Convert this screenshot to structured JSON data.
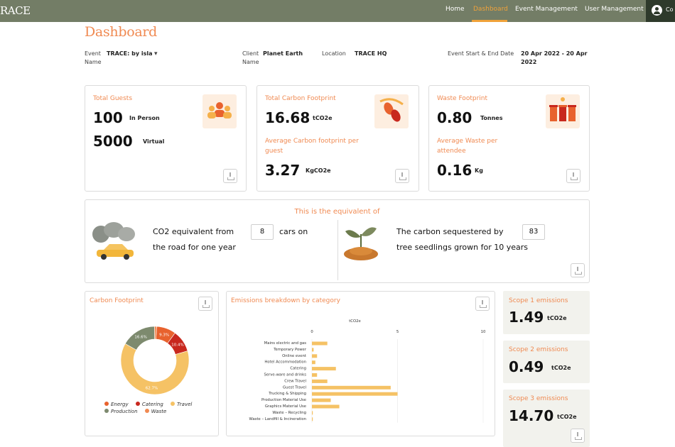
{
  "nav": {
    "logo": "RACE",
    "home": "Home",
    "dashboard": "Dashboard",
    "event_mgmt": "Event Management",
    "user_mgmt": "User Management",
    "user_label": "Co"
  },
  "page": {
    "title": "Dashboard"
  },
  "event_info": {
    "event_label": "Event Name",
    "event_value": "TRACE: by isla",
    "client_label": "Client Name",
    "client_value": "Planet Earth",
    "location_label": "Location",
    "location_value": "TRACE HQ",
    "dates_label": "Event Start & End Date",
    "dates_value": "20 Apr 2022 - 20 Apr 2022"
  },
  "guests": {
    "label": "Total Guests",
    "in_person": "100",
    "in_person_label": "In Person",
    "virtual": "5000",
    "virtual_label": "Virtual"
  },
  "carbon": {
    "label": "Total Carbon Footprint",
    "value": "16.68",
    "unit": "tCO2e",
    "avg_label": "Average Carbon footprint per guest",
    "avg_value": "3.27",
    "avg_unit": "KgCO2e"
  },
  "waste": {
    "label": "Waste Footprint",
    "value": "0.80",
    "unit": "Tonnes",
    "avg_label": "Average Waste per attendee",
    "avg_value": "0.16",
    "avg_unit": "Kg"
  },
  "equivalent": {
    "heading": "This is the equivalent of",
    "cars_text1": "CO2 equivalent from",
    "cars_value": "8",
    "cars_text2": "cars on",
    "cars_text3": "the road for one year",
    "trees_text1": "The carbon sequestered by",
    "trees_value": "83",
    "trees_text2": "tree seedlings grown for 10 years"
  },
  "footprint_chart": {
    "title": "Carbon Footprint",
    "legend": [
      {
        "name": "Energy",
        "color": "#e8622e"
      },
      {
        "name": "Catering",
        "color": "#c8281e"
      },
      {
        "name": "Travel",
        "color": "#f5c265"
      },
      {
        "name": "Production",
        "color": "#7d8a6e"
      },
      {
        "name": "Waste",
        "color": "#f08a52"
      }
    ]
  },
  "emissions_chart": {
    "title": "Emissions breakdown by category"
  },
  "scopes": [
    {
      "label": "Scope 1 emissions",
      "value": "1.49",
      "unit": "tCO2e"
    },
    {
      "label": "Scope 2 emissions",
      "value": "0.49",
      "unit": "tCO2e"
    },
    {
      "label": "Scope 3 emissions",
      "value": "14.70",
      "unit": "tCO2e"
    }
  ],
  "chart_data": [
    {
      "type": "pie",
      "title": "Carbon Footprint",
      "labels": [
        "Energy",
        "Catering",
        "Travel",
        "Production",
        "Waste"
      ],
      "values": [
        9.3,
        10.4,
        62.7,
        16.6,
        1.0
      ],
      "value_labels": [
        "9.3%",
        "10.4%",
        "62.7%",
        "16.6%",
        ""
      ],
      "colors": [
        "#e8622e",
        "#c8281e",
        "#f5c265",
        "#7d8a6e",
        "#f08a52"
      ]
    },
    {
      "type": "bar",
      "orientation": "horizontal",
      "title": "Emissions breakdown by category",
      "xlabel": "tCO2e",
      "xlim": [
        0,
        10
      ],
      "xticks": [
        0,
        5,
        10
      ],
      "categories": [
        "Mains electric and gas",
        "Temporary Power",
        "Online event",
        "Hotel Accommodation",
        "Catering",
        "Serve-ware and drinks",
        "Crew Travel",
        "Guest Travel",
        "Trucking & Shipping",
        "Production Material Use",
        "Graphics Material Use",
        "Waste – Recycling",
        "Waste – Landfill & Incineration"
      ],
      "values": [
        0.9,
        0.1,
        0.3,
        0.2,
        1.4,
        0.3,
        0.9,
        4.6,
        5.0,
        1.1,
        1.6,
        0.05,
        0.05
      ],
      "color": "#f5c265"
    }
  ]
}
